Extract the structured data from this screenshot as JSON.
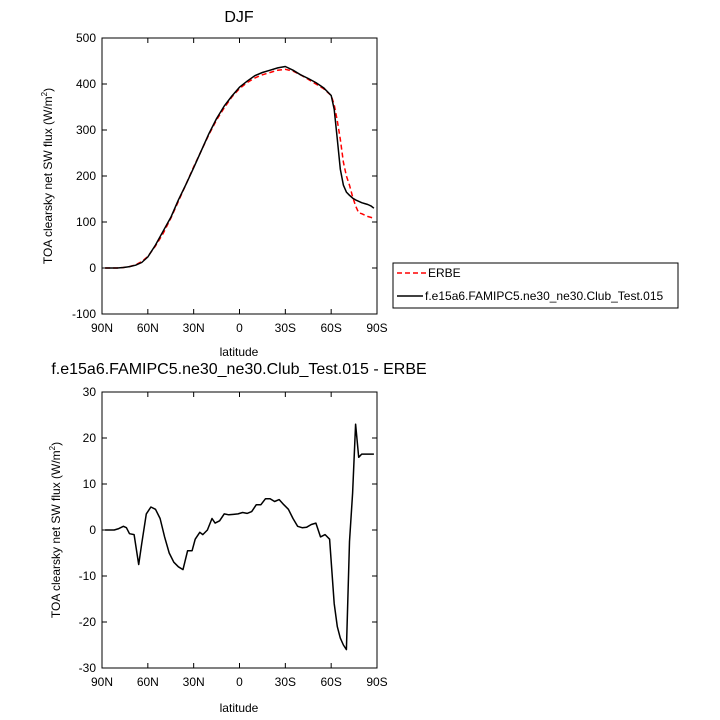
{
  "chart_data": [
    {
      "type": "line",
      "title": "DJF",
      "xlabel": "latitude",
      "ylabel_main": "TOA clearsky net SW flux (W/m",
      "ylabel_sup": "2",
      "ylabel_close": ")",
      "xlim": [
        90,
        -90
      ],
      "ylim": [
        -100,
        500
      ],
      "x_ticks": [
        90,
        60,
        30,
        0,
        -30,
        -60,
        -90
      ],
      "x_tick_labels": [
        "90N",
        "60N",
        "30N",
        "0",
        "30S",
        "60S",
        "90S"
      ],
      "y_ticks": [
        -100,
        0,
        100,
        200,
        300,
        400,
        500
      ],
      "y_tick_labels": [
        "-100",
        "0",
        "100",
        "200",
        "300",
        "400",
        "500"
      ],
      "legend_position": "right",
      "series": [
        {
          "name": "ERBE",
          "color": "#ff0000",
          "dash": "dashed",
          "x": [
            88,
            84,
            80,
            76,
            72,
            68,
            64,
            60,
            55,
            50,
            45,
            40,
            35,
            30,
            25,
            20,
            15,
            10,
            5,
            0,
            -5,
            -10,
            -15,
            -20,
            -25,
            -30,
            -35,
            -40,
            -45,
            -50,
            -55,
            -60,
            -62,
            -64,
            -66,
            -68,
            -70,
            -72,
            -74,
            -76,
            -78,
            -80,
            -82,
            -84,
            -86,
            -88
          ],
          "y": [
            0,
            0,
            0,
            1,
            3,
            7,
            14,
            25,
            48,
            75,
            108,
            145,
            182,
            220,
            255,
            290,
            322,
            348,
            372,
            390,
            403,
            413,
            420,
            425,
            430,
            432,
            428,
            420,
            410,
            400,
            390,
            375,
            355,
            320,
            280,
            230,
            200,
            180,
            155,
            135,
            120,
            118,
            115,
            112,
            110,
            108
          ]
        },
        {
          "name": "f.e15a6.FAMIPC5.ne30_ne30.Club_Test.015",
          "color": "#000000",
          "dash": "solid",
          "x": [
            88,
            84,
            80,
            76,
            72,
            68,
            64,
            60,
            55,
            50,
            45,
            40,
            35,
            30,
            25,
            20,
            15,
            10,
            5,
            0,
            -5,
            -10,
            -15,
            -20,
            -25,
            -30,
            -35,
            -40,
            -45,
            -50,
            -55,
            -60,
            -62,
            -64,
            -66,
            -68,
            -70,
            -72,
            -74,
            -76,
            -78,
            -80,
            -82,
            -84,
            -86,
            -88
          ],
          "y": [
            0,
            0,
            0,
            1,
            3,
            6,
            12,
            24,
            50,
            80,
            110,
            148,
            182,
            218,
            255,
            292,
            325,
            352,
            374,
            393,
            406,
            418,
            425,
            430,
            435,
            438,
            430,
            420,
            412,
            403,
            392,
            375,
            345,
            280,
            215,
            180,
            165,
            158,
            152,
            148,
            145,
            142,
            140,
            138,
            135,
            130
          ]
        }
      ]
    },
    {
      "type": "line",
      "title": "f.e15a6.FAMIPC5.ne30_ne30.Club_Test.015 - ERBE",
      "xlabel": "latitude",
      "ylabel_main": "TOA clearsky net SW flux (W/m",
      "ylabel_sup": "2",
      "ylabel_close": ")",
      "xlim": [
        90,
        -90
      ],
      "ylim": [
        -30,
        30
      ],
      "x_ticks": [
        90,
        60,
        30,
        0,
        -30,
        -60,
        -90
      ],
      "x_tick_labels": [
        "90N",
        "60N",
        "30N",
        "0",
        "30S",
        "60S",
        "90S"
      ],
      "y_ticks": [
        -30,
        -20,
        -10,
        0,
        10,
        20,
        30
      ],
      "y_tick_labels": [
        "-30",
        "-20",
        "-10",
        "0",
        "10",
        "20",
        "30"
      ],
      "series": [
        {
          "color": "#000000",
          "dash": "solid",
          "x": [
            88,
            84,
            82,
            79,
            76,
            74,
            72,
            69,
            66,
            64,
            61,
            58,
            55,
            52,
            49,
            46,
            43,
            40,
            37,
            34,
            31,
            29,
            26,
            24,
            21,
            18,
            16,
            13,
            10,
            7,
            4,
            1,
            -2,
            -5,
            -8,
            -11,
            -14,
            -17,
            -20,
            -23,
            -26,
            -29,
            -32,
            -35,
            -38,
            -41,
            -44,
            -47,
            -50,
            -53,
            -56,
            -59,
            -62,
            -64,
            -66,
            -68,
            -70,
            -72,
            -74,
            -76,
            -78,
            -80,
            -82,
            -84,
            -86,
            -88
          ],
          "y": [
            0,
            0,
            0,
            0.3,
            0.8,
            0.5,
            -0.8,
            -1.0,
            -7.5,
            -3.0,
            3.5,
            5.0,
            4.5,
            2.5,
            -1.5,
            -5.0,
            -7.0,
            -8.0,
            -8.6,
            -4.5,
            -4.5,
            -2.0,
            -0.5,
            -1.0,
            0.0,
            2.5,
            1.5,
            2.0,
            3.5,
            3.3,
            3.4,
            3.5,
            3.8,
            3.6,
            4.0,
            5.5,
            5.5,
            6.8,
            6.8,
            6.2,
            6.6,
            5.5,
            4.5,
            2.5,
            0.8,
            0.5,
            0.6,
            1.2,
            1.5,
            -1.5,
            -1.0,
            -2.0,
            -16.0,
            -21.0,
            -23.5,
            -25.0,
            -26.0,
            -2.5,
            8.0,
            23.0,
            15.8,
            16.5,
            16.5,
            16.5,
            16.5,
            16.5
          ]
        }
      ]
    }
  ]
}
